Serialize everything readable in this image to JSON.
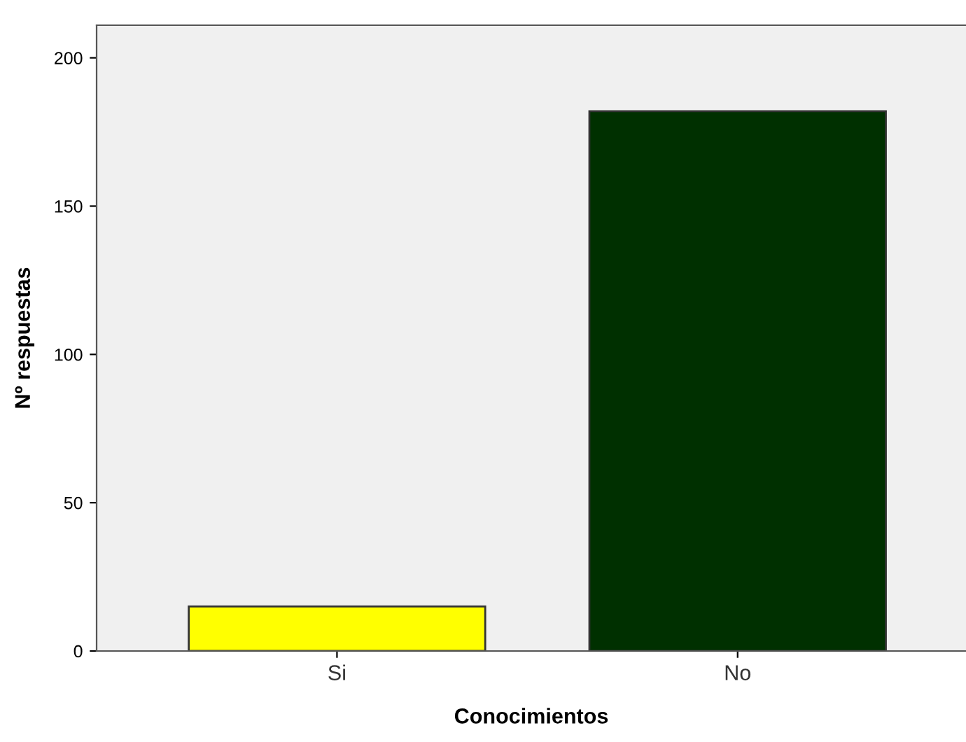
{
  "chart_data": {
    "type": "bar",
    "xlabel": "Conocimientos",
    "ylabel": "Nº respuestas",
    "categories": [
      "Si",
      "No"
    ],
    "values": [
      15,
      182
    ],
    "colors": [
      "#ffff00",
      "#003000"
    ],
    "ylim": [
      0,
      211
    ],
    "yticks": [
      0,
      50,
      100,
      150,
      200
    ],
    "grid": false,
    "legend": false
  }
}
